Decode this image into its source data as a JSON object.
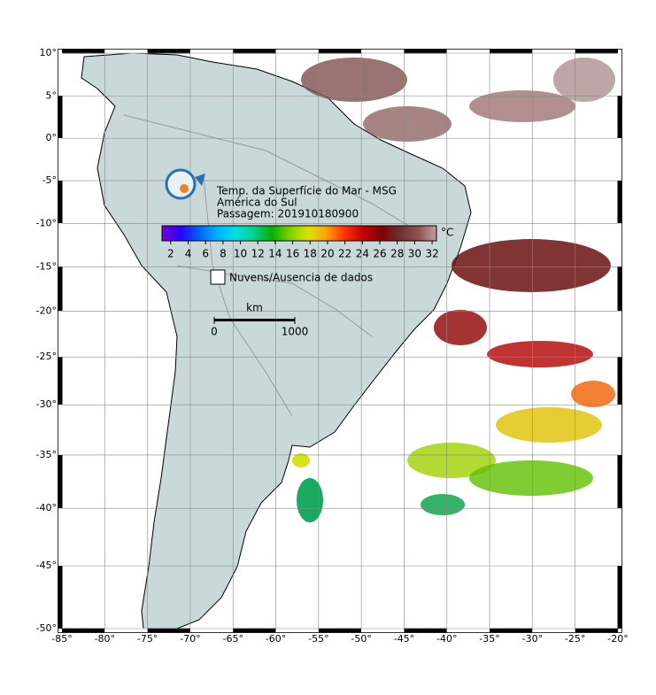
{
  "map": {
    "title_lines": [
      "Temp. da Superfície do Mar - MSG",
      "América do Sul",
      "Passagem: 201910180900"
    ],
    "colorbar": {
      "lim": [
        1,
        32.5
      ],
      "ticks": [
        2,
        4,
        6,
        8,
        10,
        12,
        14,
        16,
        18,
        20,
        22,
        24,
        26,
        28,
        30,
        32
      ],
      "unit": "°C",
      "colors": [
        "#7a00d0",
        "#2a00ff",
        "#0060ff",
        "#00b0ff",
        "#00e0e0",
        "#00d090",
        "#00b000",
        "#80d000",
        "#e0e000",
        "#ffa000",
        "#ff3000",
        "#c00000",
        "#800000",
        "#703030",
        "#905050",
        "#c0a0a0"
      ]
    },
    "legend_label": "Nuvens/Ausencia de dados",
    "scale": {
      "unit": "km",
      "ticks": [
        0,
        1000
      ]
    },
    "lon_lim": [
      -85,
      -20
    ],
    "lat_lim": [
      -50,
      10
    ],
    "lon_ticks": [
      {
        "value": -85,
        "label": "-85°"
      },
      {
        "value": -80,
        "label": "-80°"
      },
      {
        "value": -75,
        "label": "-75°"
      },
      {
        "value": -70,
        "label": "-70°"
      },
      {
        "value": -65,
        "label": "-65°"
      },
      {
        "value": -60,
        "label": "-60°"
      },
      {
        "value": -55,
        "label": "-55°"
      },
      {
        "value": -50,
        "label": "-50°"
      },
      {
        "value": -45,
        "label": "-45°"
      },
      {
        "value": -40,
        "label": "-40°"
      },
      {
        "value": -35,
        "label": "-35°"
      },
      {
        "value": -30,
        "label": "-30°"
      },
      {
        "value": -25,
        "label": "-25°"
      },
      {
        "value": -20,
        "label": "-20°"
      }
    ],
    "lat_ticks": [
      {
        "value": 10,
        "label": "10°"
      },
      {
        "value": 5,
        "label": "5°"
      },
      {
        "value": 0,
        "label": "0°"
      },
      {
        "value": -5,
        "label": "-5°"
      },
      {
        "value": -10,
        "label": "-10°"
      },
      {
        "value": -15,
        "label": "-15°"
      },
      {
        "value": -20,
        "label": "-20°"
      },
      {
        "value": -25,
        "label": "-25°"
      },
      {
        "value": -30,
        "label": "-30°"
      },
      {
        "value": -35,
        "label": "-35°"
      },
      {
        "value": -40,
        "label": "-40°"
      },
      {
        "value": -45,
        "label": "-45°"
      },
      {
        "value": -50,
        "label": "-50°"
      }
    ]
  }
}
